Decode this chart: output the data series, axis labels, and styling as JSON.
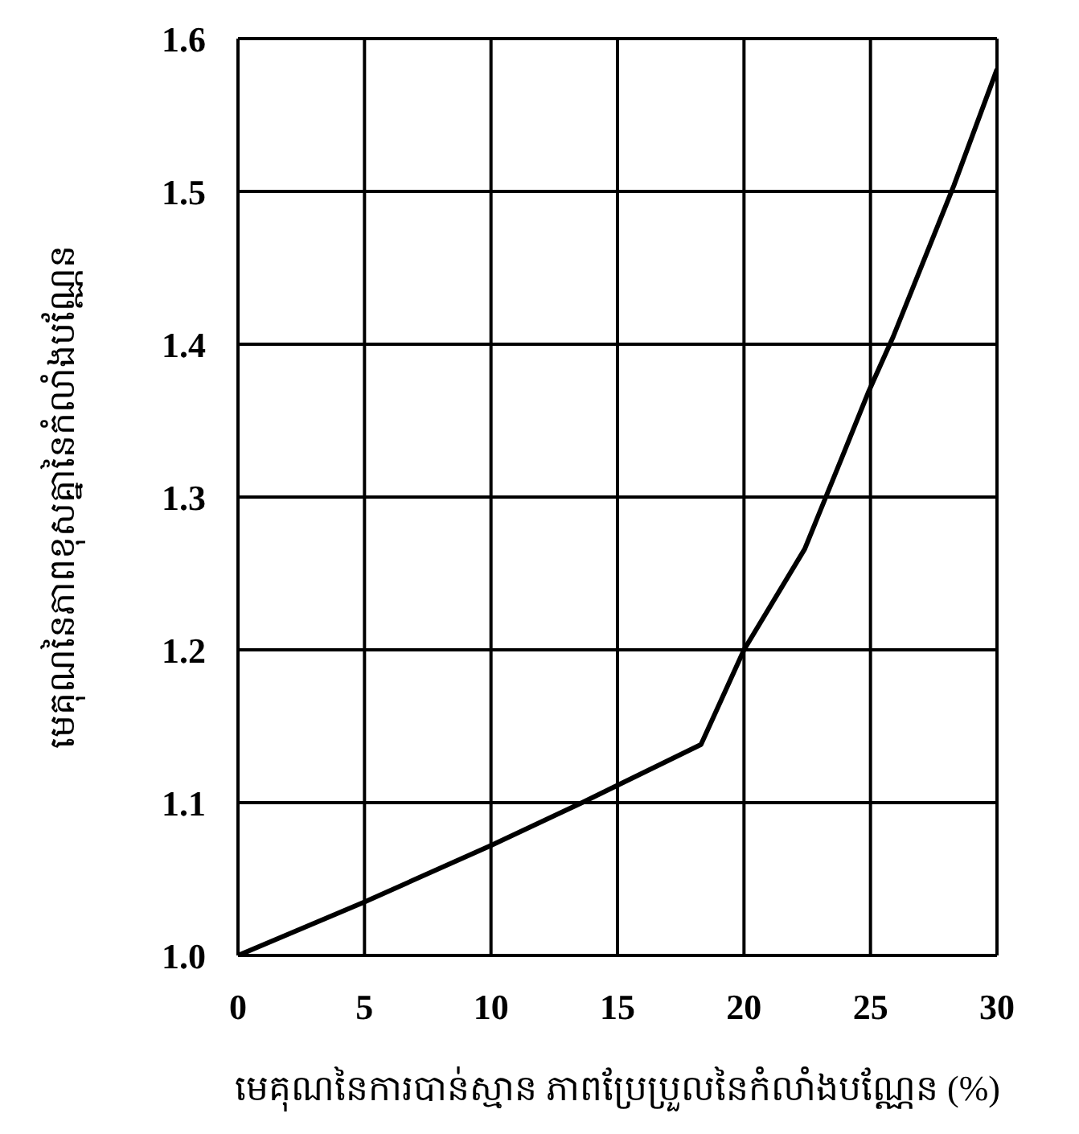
{
  "chart_data": {
    "type": "line",
    "xlabel": "មេគុណនៃការបាន់ស្មាន ភាពប្រែប្រួលនៃកំលាំងបណ្ណែន (%)",
    "ylabel": "មេគុណនៃភាពខុសគ្នានៃកំលាំងបណ្ណែន",
    "x": [
      0,
      5,
      10,
      13.6,
      18.3,
      20,
      22.4,
      23.9,
      24.9,
      25.9,
      28.3,
      30
    ],
    "series": [
      {
        "color": "#000000",
        "values": [
          1.0,
          1.035,
          1.072,
          1.1,
          1.138,
          1.2,
          1.266,
          1.327,
          1.368,
          1.405,
          1.504,
          1.58
        ]
      }
    ],
    "xlim": [
      0,
      30
    ],
    "xticks": [
      0,
      5,
      10,
      15,
      20,
      25,
      30
    ],
    "ylim": [
      1.0,
      1.6
    ],
    "yticks": [
      {
        "value": 1,
        "label": "1.0"
      },
      1.1,
      1.2,
      1.3,
      1.4,
      1.5,
      1.6
    ],
    "grid": true
  }
}
